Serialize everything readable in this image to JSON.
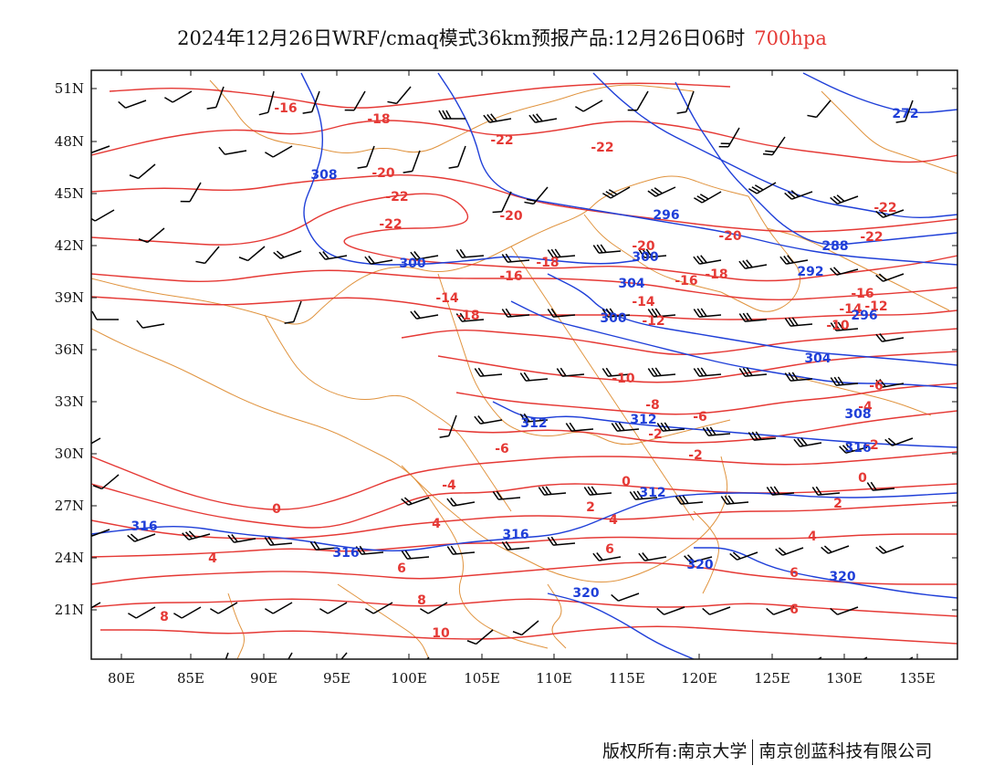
{
  "title": {
    "main": "2024年12月26日WRF/cmaq模式36km预报产品:12月26日06时",
    "level": "700hpa"
  },
  "colors": {
    "temperature": "#e53935",
    "height": "#1f3fd8",
    "border": "#e0933e",
    "wind": "#000000"
  },
  "axes": {
    "x_ticks": [
      "80E",
      "85E",
      "90E",
      "95E",
      "100E",
      "105E",
      "110E",
      "115E",
      "120E",
      "125E",
      "130E",
      "135E"
    ],
    "y_ticks": [
      "51N",
      "48N",
      "45N",
      "42N",
      "39N",
      "36N",
      "33N",
      "30N",
      "27N",
      "24N",
      "21N"
    ]
  },
  "temperature_labels": [
    "-16",
    "-18",
    "-22",
    "-22",
    "-20",
    "-22",
    "-22",
    "-20",
    "-20",
    "-18",
    "-20",
    "-22",
    "-22",
    "-14",
    "-16",
    "-18",
    "-14",
    "-16",
    "-16",
    "-12",
    "-18",
    "-14",
    "-10",
    "-12",
    "-10",
    "-8",
    "-6",
    "-6",
    "-4",
    "-2",
    "-6",
    "-4",
    "-2",
    "0",
    "0",
    "0",
    "2",
    "-2",
    "2",
    "4",
    "4",
    "4",
    "4",
    "6",
    "6",
    "6",
    "6",
    "8",
    "8",
    "10"
  ],
  "height_labels": [
    "308",
    "296",
    "272",
    "288",
    "292",
    "300",
    "300",
    "304",
    "300",
    "296",
    "304",
    "308",
    "312",
    "312",
    "316",
    "312",
    "316",
    "316",
    "316",
    "320",
    "320",
    "320"
  ],
  "footer": {
    "left": "版权所有:南京大学",
    "right": "南京创蓝科技有限公司"
  }
}
